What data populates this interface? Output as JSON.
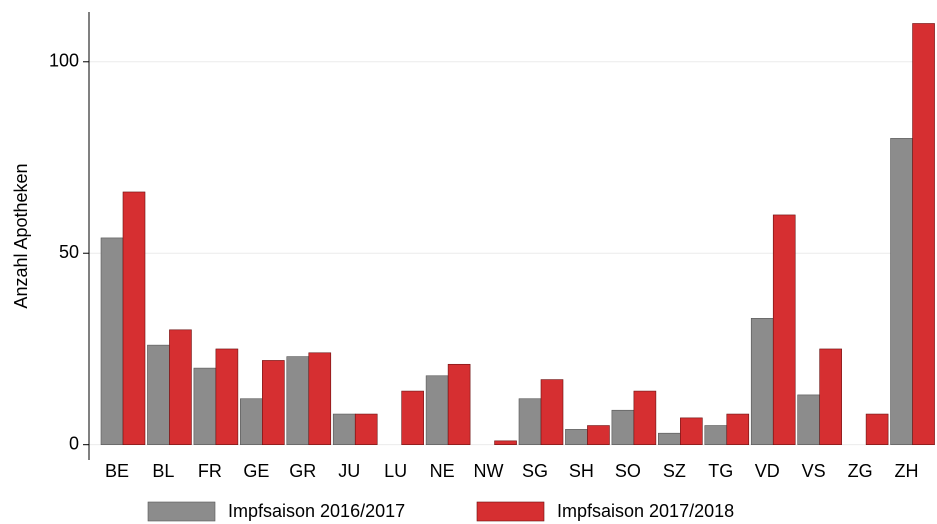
{
  "chart_data": {
    "type": "bar",
    "ylabel": "Anzahl Apotheken",
    "categories": [
      "BE",
      "BL",
      "FR",
      "GE",
      "GR",
      "JU",
      "LU",
      "NE",
      "NW",
      "SG",
      "SH",
      "SO",
      "SZ",
      "TG",
      "VD",
      "VS",
      "ZG",
      "ZH"
    ],
    "series": [
      {
        "name": "Impfsaison 2016/2017",
        "color": "#8c8c8c",
        "values": [
          54,
          26,
          20,
          12,
          23,
          8,
          0,
          18,
          0,
          12,
          4,
          9,
          3,
          5,
          33,
          13,
          0,
          80
        ]
      },
      {
        "name": "Impfsaison 2017/2018",
        "color": "#d62f31",
        "values": [
          66,
          30,
          25,
          22,
          24,
          8,
          14,
          21,
          1,
          17,
          5,
          14,
          7,
          8,
          60,
          25,
          8,
          110
        ]
      }
    ],
    "ylim": [
      -4,
      113
    ],
    "yticks": [
      0,
      50,
      100
    ],
    "grid": true,
    "legend": "bottom"
  }
}
